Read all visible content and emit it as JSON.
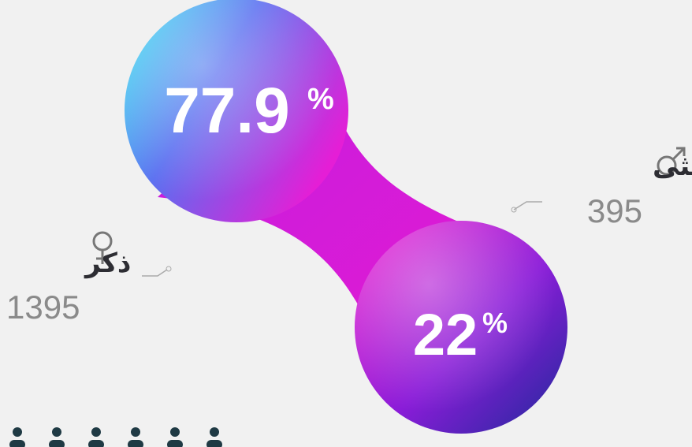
{
  "bubbles": [
    {
      "value": "77.9",
      "unit": "%"
    },
    {
      "value": "22",
      "unit": "%"
    }
  ],
  "groups": [
    {
      "label": "أنثى",
      "count": "395"
    },
    {
      "label": "ذكر",
      "count": "1395"
    }
  ]
}
